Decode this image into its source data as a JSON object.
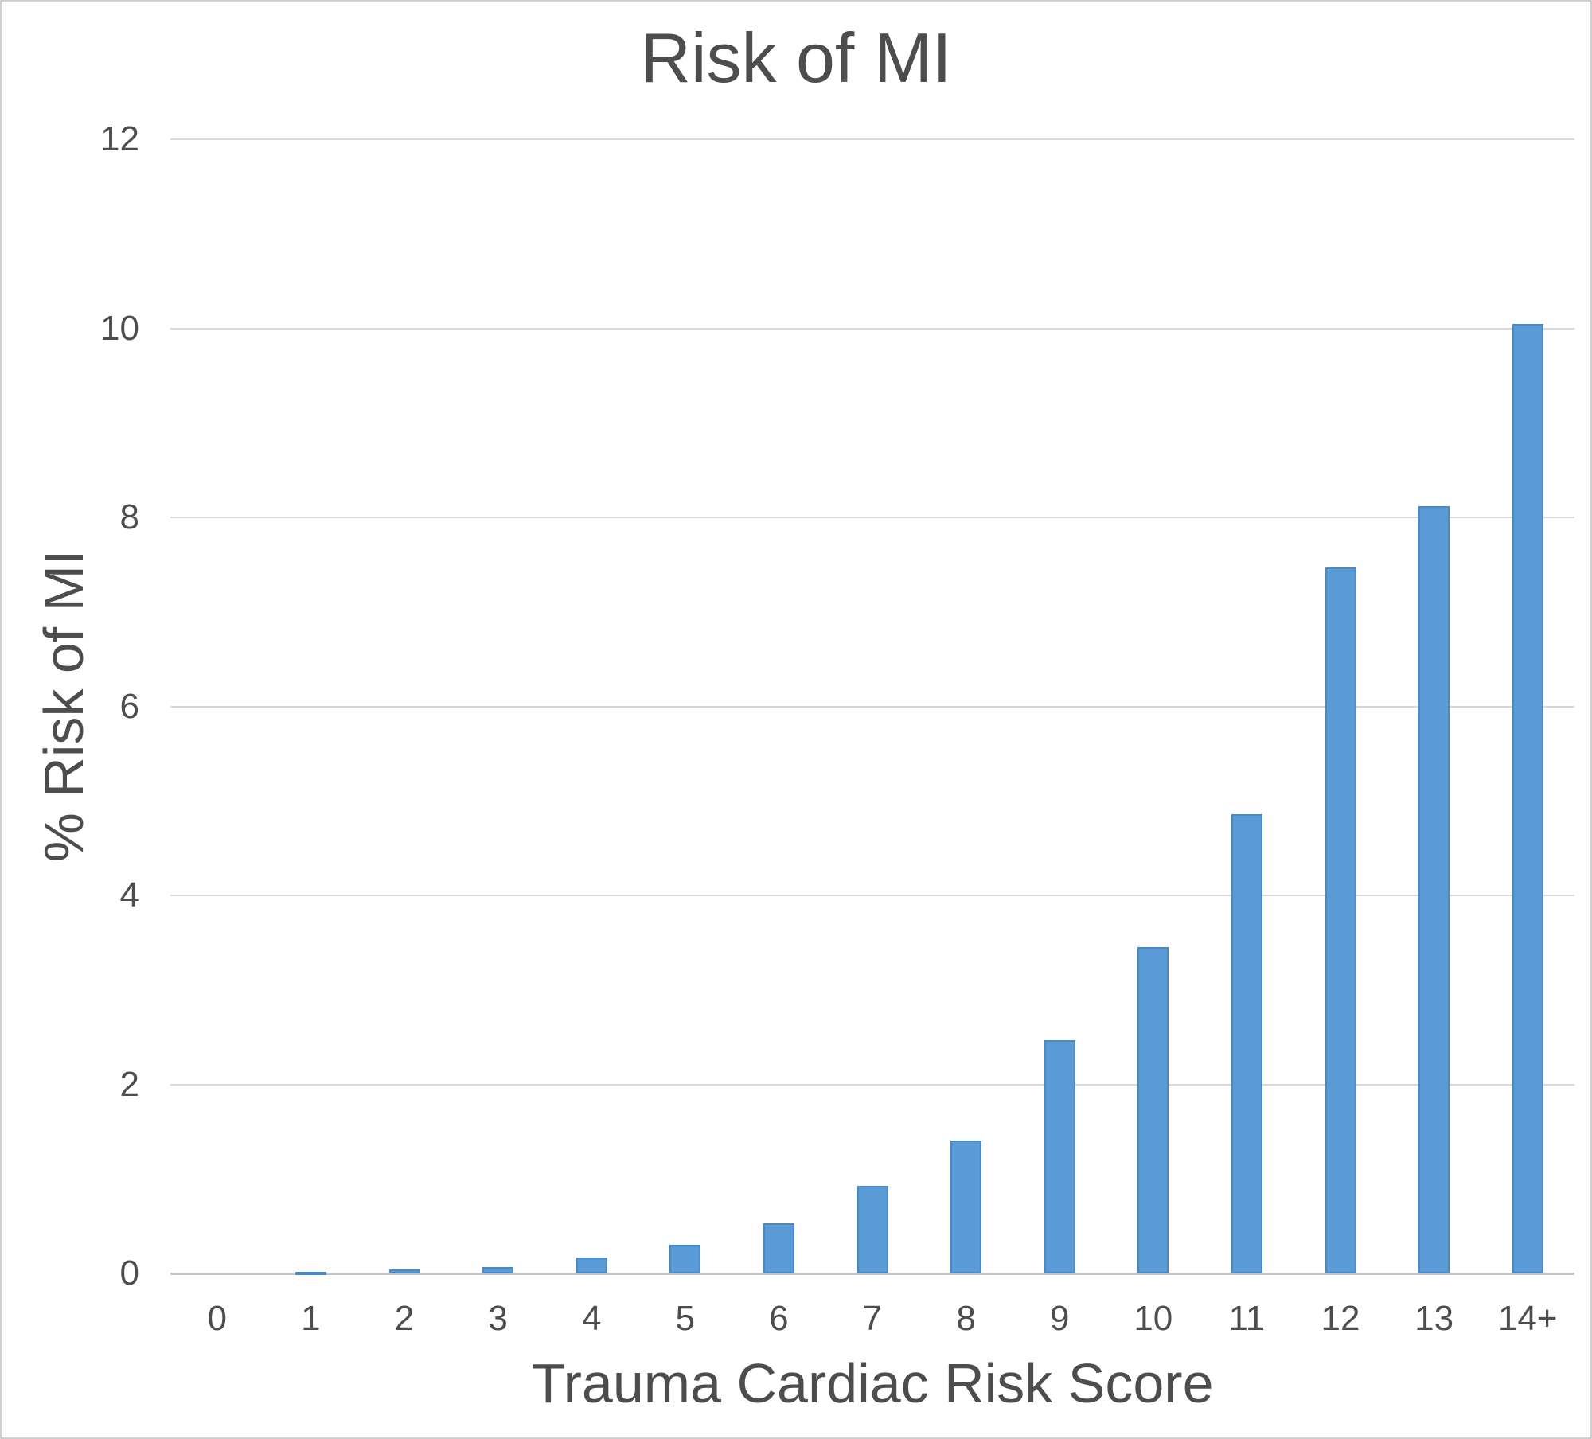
{
  "chart_data": {
    "type": "bar",
    "title": "Risk of MI",
    "xlabel": "Trauma Cardiac Risk Score",
    "ylabel": "% Risk of MI",
    "categories": [
      "0",
      "1",
      "2",
      "3",
      "4",
      "5",
      "6",
      "7",
      "8",
      "9",
      "10",
      "11",
      "12",
      "13",
      "14+"
    ],
    "values": [
      0,
      0.02,
      0.04,
      0.07,
      0.17,
      0.3,
      0.53,
      0.93,
      1.41,
      2.47,
      3.45,
      4.86,
      7.47,
      8.12,
      10.05
    ],
    "ylim": [
      0,
      12
    ],
    "ytick_step": 2,
    "yticks": [
      0,
      2,
      4,
      6,
      8,
      10,
      12
    ],
    "grid": true,
    "legend": "none",
    "colors": {
      "bar_fill": "#5B9BD5",
      "bar_border": "#4A89C8",
      "gridline": "#D9D9D9",
      "axis_line": "#C6C6C6",
      "text": "#4D4D4D",
      "frame": "#D0D0D0",
      "background": "#FFFFFF"
    }
  }
}
